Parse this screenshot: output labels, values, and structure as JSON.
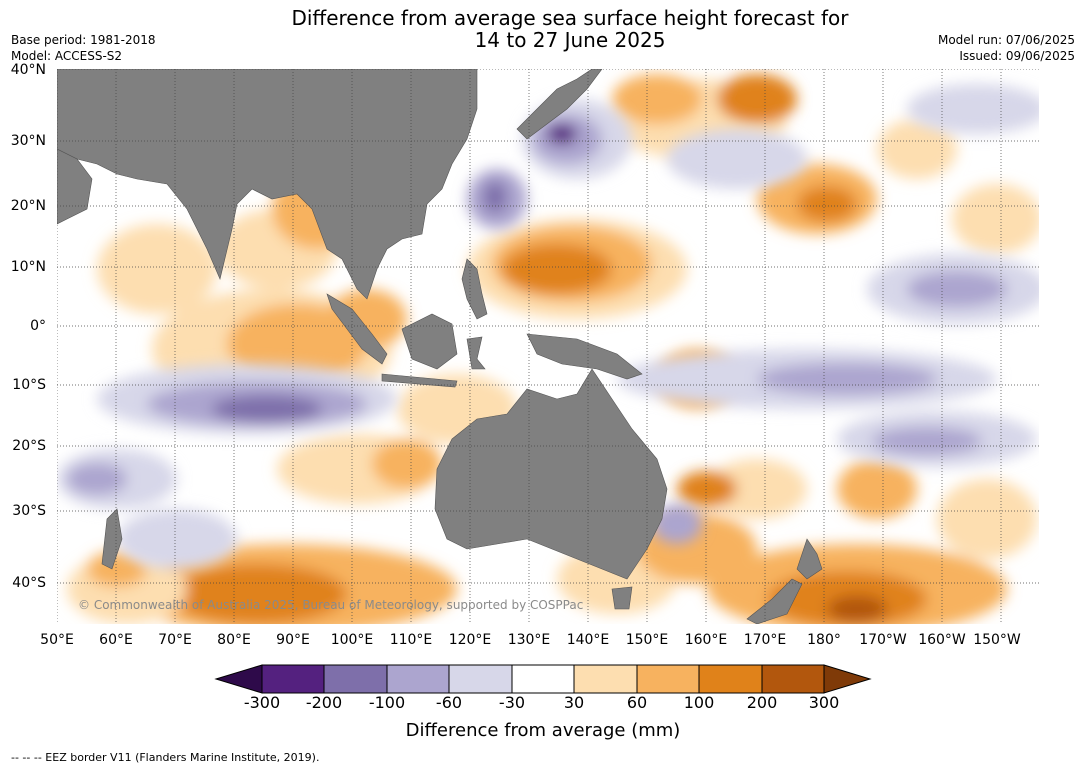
{
  "title": {
    "line1": "Difference from average sea surface height forecast for",
    "line2": "14 to 27 June 2025"
  },
  "meta": {
    "base_period": "Base period: 1981-2018",
    "model": "Model: ACCESS-S2",
    "model_run": "Model run: 07/06/2025",
    "issued": "Issued: 09/06/2025"
  },
  "lat_labels": [
    "40°N",
    "30°N",
    "20°N",
    "10°N",
    "0°",
    "10°S",
    "20°S",
    "30°S",
    "40°S"
  ],
  "lon_labels": [
    "50°E",
    "60°E",
    "70°E",
    "80°E",
    "90°E",
    "100°E",
    "110°E",
    "120°E",
    "130°E",
    "140°E",
    "150°E",
    "160°E",
    "170°E",
    "180°",
    "170°W",
    "160°W",
    "150°W"
  ],
  "copyright": "© Commonwealth of Australia 2025, Bureau of Meteorology, supported by COSPPac",
  "colorbar": {
    "title": "Difference from average (mm)",
    "ticks": [
      "-300",
      "-200",
      "-100",
      "-60",
      "-30",
      "30",
      "60",
      "100",
      "200",
      "300"
    ],
    "colors": [
      "#2e0a4a",
      "#54217f",
      "#7e6faa",
      "#aca5cf",
      "#d7d7e9",
      "#ffffff",
      "#fddeb0",
      "#f7b25f",
      "#e0821a",
      "#b2570d",
      "#7f3a08"
    ]
  },
  "footer": "--  --  -- EEZ border V11 (Flanders Marine Institute, 2019).",
  "colors": {
    "land": "#808080",
    "grid": "#444444"
  }
}
